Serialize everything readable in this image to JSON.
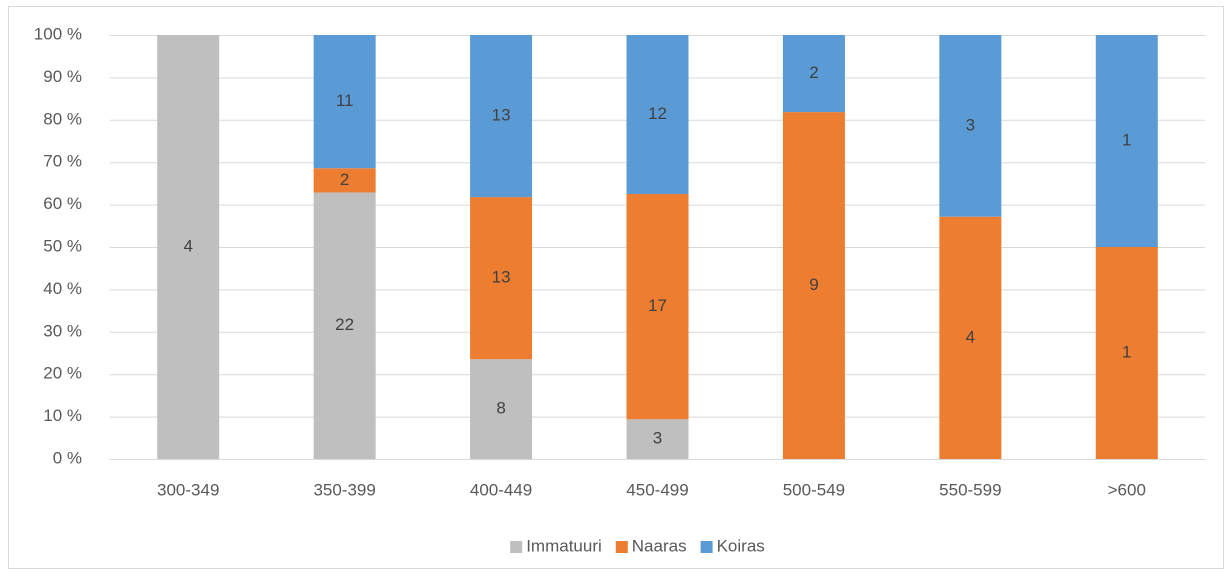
{
  "chart_data": {
    "type": "bar",
    "stacking": "percent",
    "categories": [
      "300-349",
      "350-399",
      "400-449",
      "450-499",
      "500-549",
      "550-599",
      ">600"
    ],
    "series": [
      {
        "name": "Immatuuri",
        "color": "#bfbfbf",
        "values": [
          4,
          22,
          8,
          3,
          null,
          null,
          null
        ]
      },
      {
        "name": "Naaras",
        "color": "#ed7d31",
        "values": [
          null,
          2,
          13,
          17,
          9,
          4,
          1
        ]
      },
      {
        "name": "Koiras",
        "color": "#5b9bd5",
        "values": [
          null,
          11,
          13,
          12,
          2,
          3,
          1
        ]
      }
    ],
    "ylim": [
      0,
      100
    ],
    "yticks": [
      {
        "value": 0,
        "label": "0 %"
      },
      {
        "value": 10,
        "label": "10 %"
      },
      {
        "value": 20,
        "label": "20 %"
      },
      {
        "value": 30,
        "label": "30 %"
      },
      {
        "value": 40,
        "label": "40 %"
      },
      {
        "value": 50,
        "label": "50 %"
      },
      {
        "value": 60,
        "label": "60 %"
      },
      {
        "value": 70,
        "label": "70 %"
      },
      {
        "value": 80,
        "label": "80 %"
      },
      {
        "value": 90,
        "label": "90 %"
      },
      {
        "value": 100,
        "label": "100 %"
      }
    ],
    "grid": true,
    "legend": "bottom"
  }
}
